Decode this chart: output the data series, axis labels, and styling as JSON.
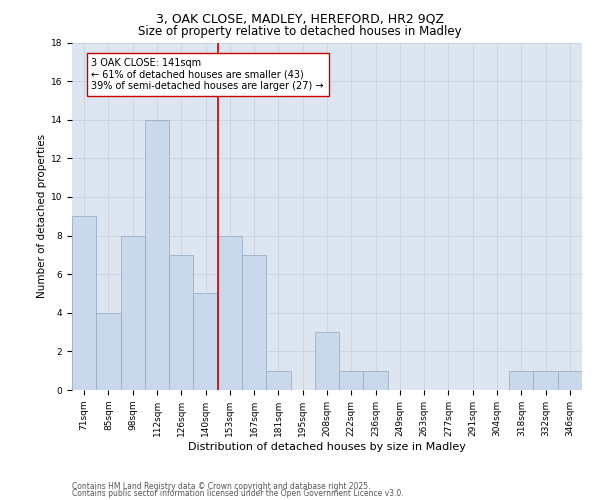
{
  "title1": "3, OAK CLOSE, MADLEY, HEREFORD, HR2 9QZ",
  "title2": "Size of property relative to detached houses in Madley",
  "xlabel": "Distribution of detached houses by size in Madley",
  "ylabel": "Number of detached properties",
  "categories": [
    "71sqm",
    "85sqm",
    "98sqm",
    "112sqm",
    "126sqm",
    "140sqm",
    "153sqm",
    "167sqm",
    "181sqm",
    "195sqm",
    "208sqm",
    "222sqm",
    "236sqm",
    "249sqm",
    "263sqm",
    "277sqm",
    "291sqm",
    "304sqm",
    "318sqm",
    "332sqm",
    "346sqm"
  ],
  "values": [
    9,
    4,
    8,
    14,
    7,
    5,
    8,
    7,
    1,
    0,
    3,
    1,
    1,
    0,
    0,
    0,
    0,
    0,
    1,
    1,
    1
  ],
  "bar_color": "#c9d9eb",
  "bar_edge_color": "#9ab0c8",
  "vline_x_idx": 5,
  "vline_color": "#cc0000",
  "annotation_text": "3 OAK CLOSE: 141sqm\n← 61% of detached houses are smaller (43)\n39% of semi-detached houses are larger (27) →",
  "annotation_box_color": "#ffffff",
  "annotation_box_edge": "#cc0000",
  "ylim": [
    0,
    18
  ],
  "yticks": [
    0,
    2,
    4,
    6,
    8,
    10,
    12,
    14,
    16,
    18
  ],
  "grid_color": "#cdd5e5",
  "background_color": "#dde5f0",
  "footer1": "Contains HM Land Registry data © Crown copyright and database right 2025.",
  "footer2": "Contains public sector information licensed under the Open Government Licence v3.0.",
  "title_fontsize": 9,
  "subtitle_fontsize": 8.5,
  "annotation_fontsize": 7,
  "tick_fontsize": 6.5,
  "ylabel_fontsize": 7.5,
  "xlabel_fontsize": 8,
  "footer_fontsize": 5.5
}
